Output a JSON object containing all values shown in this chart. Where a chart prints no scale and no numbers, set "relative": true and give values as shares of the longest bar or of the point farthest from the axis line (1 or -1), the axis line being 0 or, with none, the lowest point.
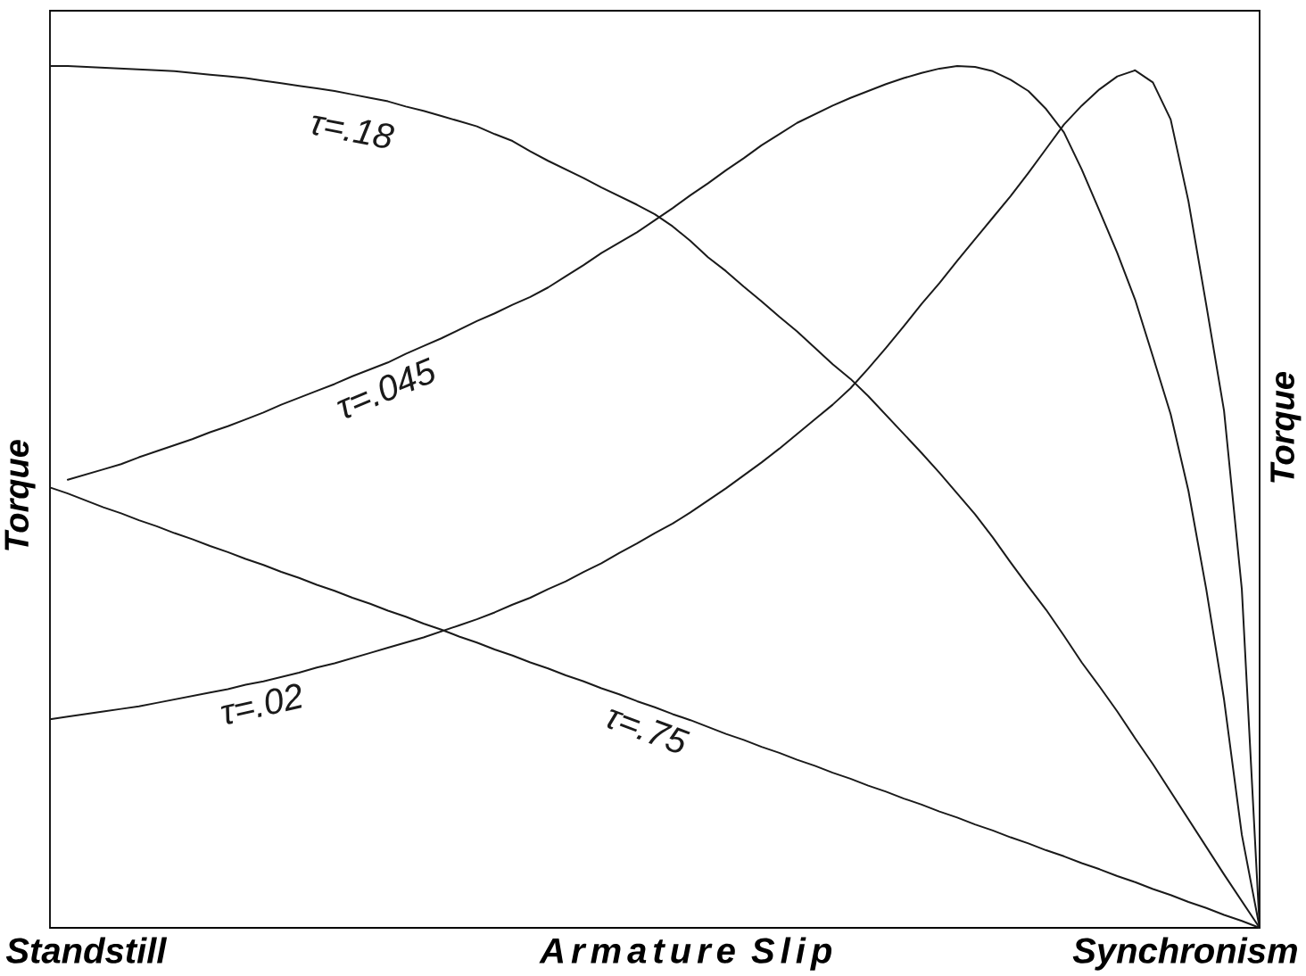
{
  "chart_data": {
    "type": "line",
    "relative": true,
    "xlabel": "Armature Slip",
    "ylabel": "Torque",
    "y2label": "Torque",
    "marker": "none",
    "line_style": "solid",
    "annotations": [
      "Standstill",
      "Synchronism"
    ],
    "categories": [
      null,
      null,
      null,
      null,
      null,
      null,
      null,
      null,
      null,
      null,
      null,
      null,
      null,
      null,
      null,
      null,
      null,
      null,
      null,
      null,
      null,
      null,
      null,
      null,
      null,
      null,
      null,
      null,
      null,
      null,
      null,
      null,
      null,
      null,
      null,
      null,
      null,
      null,
      null,
      null,
      null,
      null,
      null,
      null,
      null,
      null,
      null,
      null,
      null,
      null,
      null,
      null,
      null,
      null,
      null,
      null,
      null,
      null,
      null,
      null,
      null,
      null,
      null,
      null,
      null,
      null,
      null,
      null,
      null
    ],
    "series": [
      {
        "name": "τ=.18",
        "color": "#1a1a1a",
        "values": [
          1.0,
          1.0,
          0.999,
          0.998,
          0.997,
          0.996,
          0.995,
          0.994,
          0.992,
          0.99,
          0.988,
          0.986,
          0.983,
          0.98,
          0.977,
          0.974,
          0.971,
          0.967,
          0.963,
          0.959,
          0.953,
          0.948,
          0.942,
          0.936,
          0.93,
          0.921,
          0.913,
          0.901,
          0.89,
          0.88,
          0.87,
          0.859,
          0.849,
          0.839,
          0.828,
          0.814,
          0.797,
          0.778,
          0.762,
          0.744,
          0.727,
          0.709,
          0.692,
          0.673,
          0.654,
          0.637,
          0.617,
          0.595,
          0.573,
          0.551,
          0.528,
          0.504,
          0.48,
          0.453,
          0.424,
          0.396,
          0.369,
          0.339,
          0.308,
          0.28,
          0.251,
          0.22,
          0.19,
          0.158,
          0.126,
          0.094,
          0.062,
          0.031,
          0
        ]
      },
      {
        "name": "τ=.045",
        "color": "#1a1a1a",
        "values": [
          null,
          0.52,
          0.526,
          0.532,
          0.538,
          0.546,
          0.553,
          0.56,
          0.567,
          0.575,
          0.582,
          0.59,
          0.598,
          0.607,
          0.615,
          0.623,
          0.631,
          0.64,
          0.648,
          0.656,
          0.666,
          0.675,
          0.684,
          0.694,
          0.704,
          0.713,
          0.723,
          0.732,
          0.743,
          0.756,
          0.769,
          0.783,
          0.795,
          0.807,
          0.821,
          0.835,
          0.85,
          0.864,
          0.879,
          0.893,
          0.908,
          0.921,
          0.934,
          0.944,
          0.954,
          0.963,
          0.971,
          0.979,
          0.986,
          0.992,
          0.997,
          1.0,
          0.999,
          0.994,
          0.984,
          0.971,
          0.95,
          0.923,
          0.88,
          0.832,
          0.783,
          0.729,
          0.663,
          0.596,
          0.507,
          0.393,
          0.265,
          0.108,
          0
        ]
      },
      {
        "name": "τ=.02",
        "color": "#1a1a1a",
        "values": [
          0.242,
          0.245,
          0.248,
          0.251,
          0.254,
          0.257,
          0.261,
          0.265,
          0.269,
          0.273,
          0.277,
          0.282,
          0.286,
          0.291,
          0.296,
          0.302,
          0.307,
          0.313,
          0.319,
          0.325,
          0.331,
          0.337,
          0.344,
          0.351,
          0.358,
          0.366,
          0.375,
          0.383,
          0.393,
          0.402,
          0.413,
          0.423,
          0.435,
          0.446,
          0.458,
          0.469,
          0.482,
          0.496,
          0.51,
          0.525,
          0.54,
          0.556,
          0.573,
          0.59,
          0.607,
          0.626,
          0.649,
          0.673,
          0.698,
          0.724,
          0.748,
          0.774,
          0.799,
          0.824,
          0.849,
          0.876,
          0.904,
          0.932,
          0.954,
          0.973,
          0.988,
          0.995,
          0.981,
          0.938,
          0.843,
          0.723,
          0.6,
          0.393,
          0
        ]
      },
      {
        "name": "τ=.75",
        "color": "#1a1a1a",
        "values": [
          0.511,
          0.504,
          0.496,
          0.488,
          0.481,
          0.473,
          0.466,
          0.458,
          0.451,
          0.443,
          0.436,
          0.428,
          0.421,
          0.413,
          0.406,
          0.398,
          0.391,
          0.383,
          0.376,
          0.368,
          0.361,
          0.353,
          0.346,
          0.338,
          0.331,
          0.323,
          0.316,
          0.308,
          0.301,
          0.293,
          0.286,
          0.278,
          0.271,
          0.263,
          0.256,
          0.248,
          0.241,
          0.233,
          0.225,
          0.218,
          0.21,
          0.203,
          0.195,
          0.188,
          0.18,
          0.173,
          0.165,
          0.158,
          0.15,
          0.143,
          0.135,
          0.128,
          0.12,
          0.113,
          0.105,
          0.098,
          0.09,
          0.083,
          0.075,
          0.068,
          0.06,
          0.053,
          0.045,
          0.038,
          0.03,
          0.023,
          0.015,
          0.008,
          0
        ]
      }
    ]
  }
}
